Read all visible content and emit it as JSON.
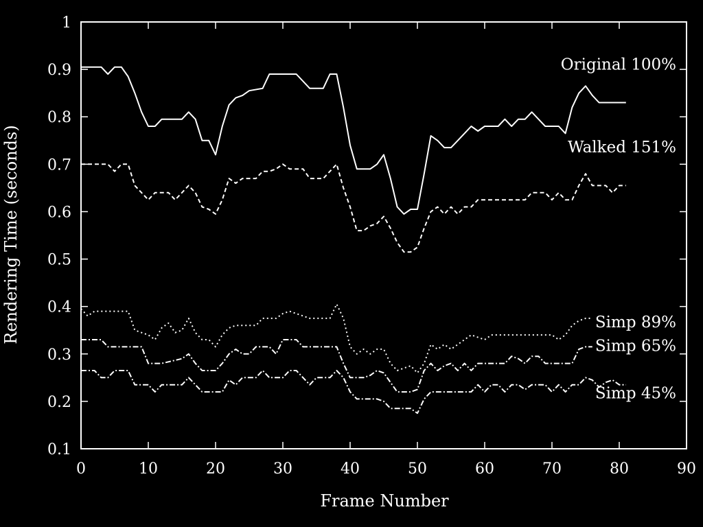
{
  "chart_data": {
    "type": "line",
    "title": "",
    "xlabel": "Frame Number",
    "ylabel": "Rendering Time (seconds)",
    "xlim": [
      0,
      90
    ],
    "ylim": [
      0.1,
      1.0
    ],
    "xticks": [
      0,
      10,
      20,
      30,
      40,
      50,
      60,
      70,
      80,
      90
    ],
    "yticks": [
      0.1,
      0.2,
      0.3,
      0.4,
      0.5,
      0.6,
      0.7,
      0.8,
      0.9,
      1.0
    ],
    "xtick_labels": [
      "0",
      "10",
      "20",
      "30",
      "40",
      "50",
      "60",
      "70",
      "80",
      "90"
    ],
    "ytick_labels": [
      "0.1",
      "0.2",
      "0.3",
      "0.4",
      "0.5",
      "0.6",
      "0.7",
      "0.8",
      "0.9",
      "1"
    ],
    "grid": false,
    "background": "#000000",
    "foreground": "#ffffff",
    "series": [
      {
        "name": "Original 100%",
        "style": "solid",
        "points": [
          [
            0,
            0.905
          ],
          [
            3,
            0.905
          ],
          [
            4,
            0.89
          ],
          [
            5,
            0.905
          ],
          [
            6,
            0.905
          ],
          [
            7,
            0.885
          ],
          [
            8,
            0.85
          ],
          [
            9,
            0.81
          ],
          [
            10,
            0.78
          ],
          [
            11,
            0.78
          ],
          [
            12,
            0.795
          ],
          [
            15,
            0.795
          ],
          [
            16,
            0.81
          ],
          [
            17,
            0.795
          ],
          [
            18,
            0.75
          ],
          [
            19,
            0.75
          ],
          [
            20,
            0.72
          ],
          [
            21,
            0.78
          ],
          [
            22,
            0.825
          ],
          [
            23,
            0.84
          ],
          [
            24,
            0.845
          ],
          [
            25,
            0.855
          ],
          [
            27,
            0.86
          ],
          [
            28,
            0.89
          ],
          [
            32,
            0.89
          ],
          [
            34,
            0.86
          ],
          [
            36,
            0.86
          ],
          [
            37,
            0.89
          ],
          [
            38,
            0.89
          ],
          [
            39,
            0.82
          ],
          [
            40,
            0.74
          ],
          [
            41,
            0.69
          ],
          [
            43,
            0.69
          ],
          [
            44,
            0.7
          ],
          [
            45,
            0.72
          ],
          [
            46,
            0.67
          ],
          [
            47,
            0.61
          ],
          [
            48,
            0.595
          ],
          [
            49,
            0.605
          ],
          [
            50,
            0.605
          ],
          [
            51,
            0.68
          ],
          [
            52,
            0.76
          ],
          [
            53,
            0.75
          ],
          [
            54,
            0.735
          ],
          [
            55,
            0.735
          ],
          [
            56,
            0.75
          ],
          [
            57,
            0.765
          ],
          [
            58,
            0.78
          ],
          [
            59,
            0.77
          ],
          [
            60,
            0.78
          ],
          [
            62,
            0.78
          ],
          [
            63,
            0.795
          ],
          [
            64,
            0.78
          ],
          [
            65,
            0.795
          ],
          [
            66,
            0.795
          ],
          [
            67,
            0.81
          ],
          [
            68,
            0.795
          ],
          [
            69,
            0.78
          ],
          [
            71,
            0.78
          ],
          [
            72,
            0.765
          ],
          [
            73,
            0.82
          ],
          [
            74,
            0.85
          ],
          [
            75,
            0.865
          ],
          [
            76,
            0.845
          ],
          [
            77,
            0.83
          ],
          [
            81,
            0.83
          ]
        ]
      },
      {
        "name": "Walked 151%",
        "style": "dashed",
        "points": [
          [
            0,
            0.7
          ],
          [
            4,
            0.7
          ],
          [
            5,
            0.685
          ],
          [
            6,
            0.7
          ],
          [
            7,
            0.7
          ],
          [
            8,
            0.655
          ],
          [
            9,
            0.64
          ],
          [
            10,
            0.625
          ],
          [
            11,
            0.64
          ],
          [
            13,
            0.64
          ],
          [
            14,
            0.625
          ],
          [
            15,
            0.64
          ],
          [
            16,
            0.655
          ],
          [
            17,
            0.64
          ],
          [
            18,
            0.61
          ],
          [
            19,
            0.605
          ],
          [
            20,
            0.595
          ],
          [
            21,
            0.625
          ],
          [
            22,
            0.67
          ],
          [
            23,
            0.66
          ],
          [
            24,
            0.67
          ],
          [
            26,
            0.67
          ],
          [
            27,
            0.685
          ],
          [
            28,
            0.685
          ],
          [
            29,
            0.69
          ],
          [
            30,
            0.7
          ],
          [
            31,
            0.69
          ],
          [
            33,
            0.69
          ],
          [
            34,
            0.67
          ],
          [
            36,
            0.67
          ],
          [
            37,
            0.685
          ],
          [
            38,
            0.7
          ],
          [
            39,
            0.65
          ],
          [
            40,
            0.61
          ],
          [
            41,
            0.56
          ],
          [
            42,
            0.56
          ],
          [
            43,
            0.57
          ],
          [
            44,
            0.575
          ],
          [
            45,
            0.59
          ],
          [
            46,
            0.565
          ],
          [
            47,
            0.535
          ],
          [
            48,
            0.515
          ],
          [
            49,
            0.515
          ],
          [
            50,
            0.525
          ],
          [
            51,
            0.565
          ],
          [
            52,
            0.6
          ],
          [
            53,
            0.61
          ],
          [
            54,
            0.595
          ],
          [
            55,
            0.61
          ],
          [
            56,
            0.595
          ],
          [
            57,
            0.61
          ],
          [
            58,
            0.61
          ],
          [
            59,
            0.625
          ],
          [
            65,
            0.625
          ],
          [
            66,
            0.625
          ],
          [
            67,
            0.64
          ],
          [
            69,
            0.64
          ],
          [
            70,
            0.625
          ],
          [
            71,
            0.64
          ],
          [
            72,
            0.625
          ],
          [
            73,
            0.625
          ],
          [
            74,
            0.655
          ],
          [
            75,
            0.68
          ],
          [
            76,
            0.655
          ],
          [
            78,
            0.655
          ],
          [
            79,
            0.64
          ],
          [
            80,
            0.655
          ],
          [
            81,
            0.655
          ]
        ]
      },
      {
        "name": "Simp 89%",
        "style": "dotted",
        "points": [
          [
            0,
            0.395
          ],
          [
            1,
            0.38
          ],
          [
            2,
            0.39
          ],
          [
            7,
            0.39
          ],
          [
            8,
            0.35
          ],
          [
            9,
            0.345
          ],
          [
            10,
            0.34
          ],
          [
            11,
            0.33
          ],
          [
            12,
            0.355
          ],
          [
            13,
            0.365
          ],
          [
            14,
            0.345
          ],
          [
            15,
            0.35
          ],
          [
            16,
            0.375
          ],
          [
            17,
            0.345
          ],
          [
            18,
            0.33
          ],
          [
            19,
            0.33
          ],
          [
            20,
            0.315
          ],
          [
            21,
            0.34
          ],
          [
            22,
            0.355
          ],
          [
            23,
            0.36
          ],
          [
            26,
            0.36
          ],
          [
            27,
            0.375
          ],
          [
            29,
            0.375
          ],
          [
            30,
            0.385
          ],
          [
            31,
            0.39
          ],
          [
            32,
            0.385
          ],
          [
            34,
            0.375
          ],
          [
            37,
            0.375
          ],
          [
            38,
            0.405
          ],
          [
            39,
            0.375
          ],
          [
            40,
            0.315
          ],
          [
            41,
            0.3
          ],
          [
            42,
            0.31
          ],
          [
            43,
            0.3
          ],
          [
            44,
            0.31
          ],
          [
            45,
            0.31
          ],
          [
            46,
            0.28
          ],
          [
            47,
            0.265
          ],
          [
            48,
            0.27
          ],
          [
            49,
            0.275
          ],
          [
            50,
            0.26
          ],
          [
            51,
            0.28
          ],
          [
            52,
            0.32
          ],
          [
            53,
            0.31
          ],
          [
            54,
            0.32
          ],
          [
            55,
            0.31
          ],
          [
            56,
            0.32
          ],
          [
            57,
            0.33
          ],
          [
            58,
            0.34
          ],
          [
            59,
            0.335
          ],
          [
            60,
            0.33
          ],
          [
            61,
            0.34
          ],
          [
            70,
            0.34
          ],
          [
            71,
            0.33
          ],
          [
            72,
            0.34
          ],
          [
            73,
            0.36
          ],
          [
            74,
            0.37
          ],
          [
            75,
            0.375
          ],
          [
            76,
            0.375
          ]
        ]
      },
      {
        "name": "Simp 65%",
        "style": "dash-dot",
        "points": [
          [
            0,
            0.33
          ],
          [
            3,
            0.33
          ],
          [
            4,
            0.315
          ],
          [
            9,
            0.315
          ],
          [
            10,
            0.28
          ],
          [
            12,
            0.28
          ],
          [
            15,
            0.29
          ],
          [
            16,
            0.3
          ],
          [
            17,
            0.28
          ],
          [
            18,
            0.265
          ],
          [
            20,
            0.265
          ],
          [
            21,
            0.28
          ],
          [
            22,
            0.3
          ],
          [
            23,
            0.31
          ],
          [
            24,
            0.3
          ],
          [
            25,
            0.3
          ],
          [
            26,
            0.315
          ],
          [
            28,
            0.315
          ],
          [
            29,
            0.3
          ],
          [
            30,
            0.33
          ],
          [
            32,
            0.33
          ],
          [
            33,
            0.315
          ],
          [
            38,
            0.315
          ],
          [
            39,
            0.28
          ],
          [
            40,
            0.25
          ],
          [
            42,
            0.25
          ],
          [
            43,
            0.255
          ],
          [
            44,
            0.265
          ],
          [
            45,
            0.26
          ],
          [
            46,
            0.24
          ],
          [
            47,
            0.22
          ],
          [
            49,
            0.22
          ],
          [
            50,
            0.225
          ],
          [
            51,
            0.265
          ],
          [
            52,
            0.28
          ],
          [
            53,
            0.265
          ],
          [
            54,
            0.275
          ],
          [
            55,
            0.28
          ],
          [
            56,
            0.265
          ],
          [
            57,
            0.28
          ],
          [
            58,
            0.265
          ],
          [
            59,
            0.28
          ],
          [
            63,
            0.28
          ],
          [
            64,
            0.295
          ],
          [
            65,
            0.29
          ],
          [
            66,
            0.28
          ],
          [
            67,
            0.295
          ],
          [
            68,
            0.295
          ],
          [
            69,
            0.28
          ],
          [
            73,
            0.28
          ],
          [
            74,
            0.31
          ],
          [
            75,
            0.315
          ],
          [
            76,
            0.315
          ]
        ]
      },
      {
        "name": "Simp 45%",
        "style": "dash-dot",
        "points": [
          [
            0,
            0.265
          ],
          [
            2,
            0.265
          ],
          [
            3,
            0.25
          ],
          [
            4,
            0.25
          ],
          [
            5,
            0.265
          ],
          [
            7,
            0.265
          ],
          [
            8,
            0.235
          ],
          [
            10,
            0.235
          ],
          [
            11,
            0.22
          ],
          [
            12,
            0.235
          ],
          [
            15,
            0.235
          ],
          [
            16,
            0.25
          ],
          [
            17,
            0.235
          ],
          [
            18,
            0.22
          ],
          [
            21,
            0.22
          ],
          [
            22,
            0.245
          ],
          [
            23,
            0.235
          ],
          [
            24,
            0.25
          ],
          [
            26,
            0.25
          ],
          [
            27,
            0.265
          ],
          [
            28,
            0.25
          ],
          [
            30,
            0.25
          ],
          [
            31,
            0.265
          ],
          [
            32,
            0.265
          ],
          [
            33,
            0.25
          ],
          [
            34,
            0.235
          ],
          [
            35,
            0.25
          ],
          [
            37,
            0.25
          ],
          [
            38,
            0.265
          ],
          [
            39,
            0.25
          ],
          [
            40,
            0.22
          ],
          [
            41,
            0.205
          ],
          [
            44,
            0.205
          ],
          [
            45,
            0.2
          ],
          [
            46,
            0.185
          ],
          [
            48,
            0.185
          ],
          [
            49,
            0.185
          ],
          [
            50,
            0.175
          ],
          [
            51,
            0.205
          ],
          [
            52,
            0.22
          ],
          [
            56,
            0.22
          ],
          [
            58,
            0.22
          ],
          [
            59,
            0.235
          ],
          [
            60,
            0.22
          ],
          [
            61,
            0.235
          ],
          [
            62,
            0.235
          ],
          [
            63,
            0.22
          ],
          [
            64,
            0.235
          ],
          [
            65,
            0.235
          ],
          [
            66,
            0.225
          ],
          [
            67,
            0.235
          ],
          [
            69,
            0.235
          ],
          [
            70,
            0.22
          ],
          [
            71,
            0.235
          ],
          [
            72,
            0.22
          ],
          [
            73,
            0.235
          ],
          [
            74,
            0.235
          ],
          [
            75,
            0.25
          ],
          [
            76,
            0.245
          ],
          [
            77,
            0.23
          ],
          [
            78,
            0.24
          ],
          [
            79,
            0.245
          ],
          [
            80,
            0.235
          ],
          [
            81,
            0.235
          ]
        ]
      }
    ]
  }
}
